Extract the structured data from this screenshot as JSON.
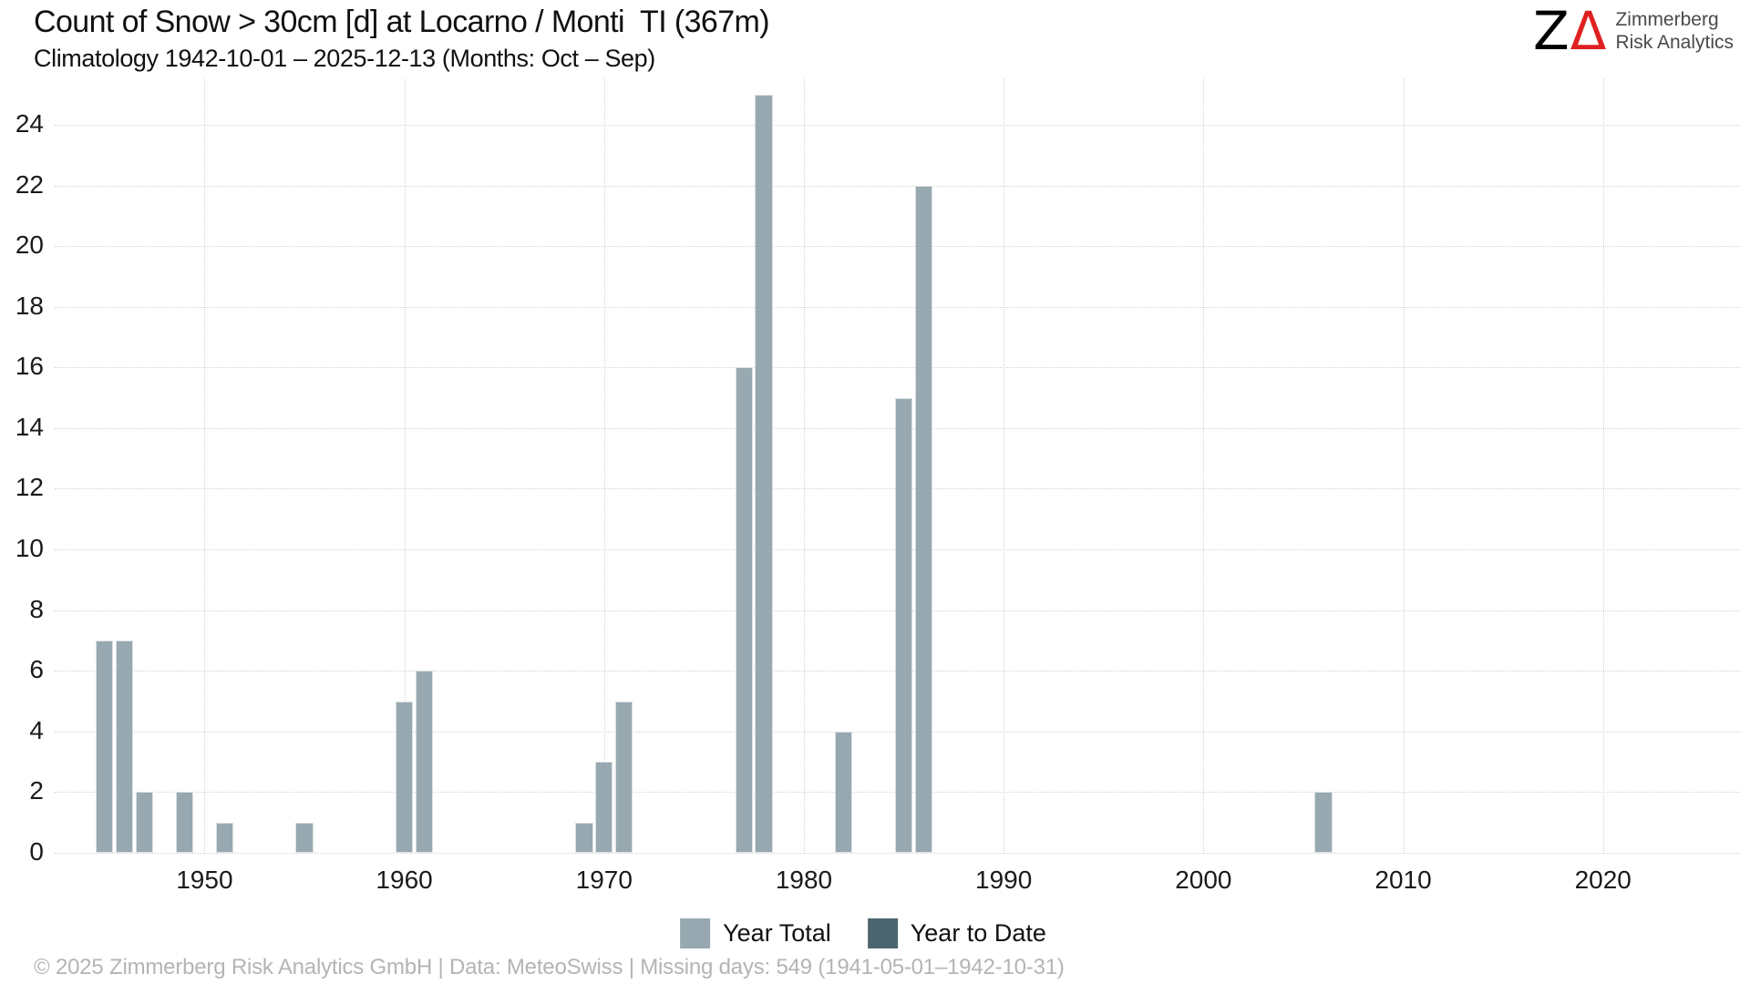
{
  "header": {
    "title": "Count of Snow > 30cm [d] at Locarno / Monti  TI (367m)",
    "subtitle": "Climatology 1942-10-01 – 2025-12-13 (Months: Oct – Sep)"
  },
  "logo": {
    "mark_z": "Z",
    "mark_delta": "Δ",
    "line1": "Zimmerberg",
    "line2": "Risk Analytics",
    "delta_color": "#e02020"
  },
  "chart_data": {
    "type": "bar",
    "title": "Count of Snow > 30cm [d] at Locarno / Monti  TI (367m)",
    "subtitle": "Climatology 1942-10-01 – 2025-12-13 (Months: Oct – Sep)",
    "xlabel": "",
    "ylabel": "",
    "x": [
      1945,
      1946,
      1947,
      1949,
      1951,
      1955,
      1960,
      1961,
      1969,
      1970,
      1971,
      1977,
      1978,
      1982,
      1985,
      1986,
      2006
    ],
    "series": [
      {
        "name": "Year Total",
        "color": "#97a8b0",
        "values": [
          7,
          7,
          2,
          2,
          1,
          1,
          5,
          6,
          1,
          3,
          5,
          16,
          25,
          4,
          15,
          22,
          2
        ]
      },
      {
        "name": "Year to Date",
        "color": "#4d656e",
        "values": []
      }
    ],
    "x_domain": [
      1942.5,
      2026.9
    ],
    "x_ticks": [
      1950,
      1960,
      1970,
      1980,
      1990,
      2000,
      2010,
      2020
    ],
    "y_domain": [
      0,
      25.5
    ],
    "y_ticks": [
      0,
      2,
      4,
      6,
      8,
      10,
      12,
      14,
      16,
      18,
      20,
      22,
      24
    ],
    "grid": "dotted",
    "legend_position": "bottom"
  },
  "legend": {
    "items": [
      {
        "label": "Year Total",
        "color": "#97a8b0"
      },
      {
        "label": "Year to Date",
        "color": "#4d656e"
      }
    ]
  },
  "footer": {
    "text": "© 2025 Zimmerberg Risk Analytics GmbH | Data: MeteoSwiss | Missing days: 549 (1941-05-01–1942-10-31)"
  },
  "colors": {
    "bar": "#97a8b0",
    "bar_dark": "#4d656e",
    "grid": "#d4d4d4",
    "text": "#111111",
    "muted": "#b4b4b4"
  }
}
